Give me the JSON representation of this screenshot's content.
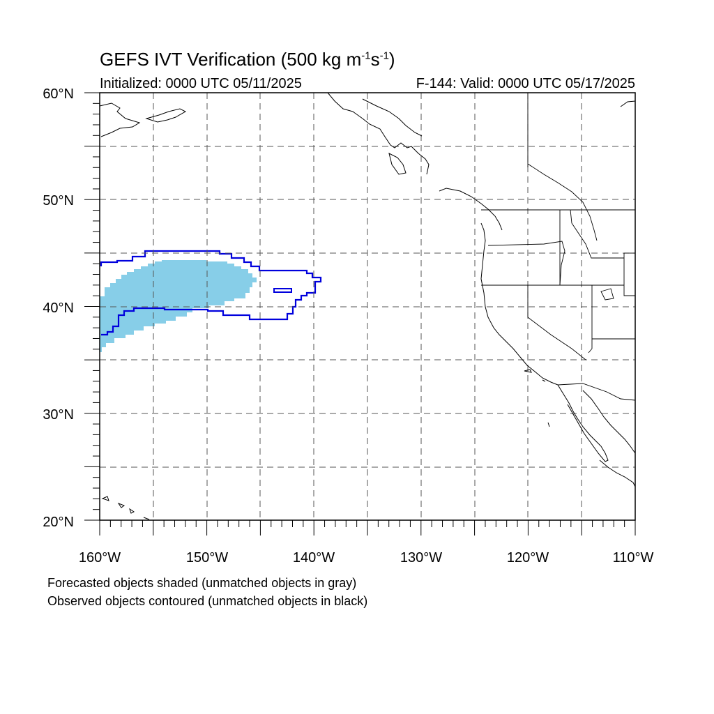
{
  "title": {
    "main": "GEFS IVT Verification (500 kg m",
    "exp1": "-1",
    "mid": "s",
    "exp2": "-1",
    "close": ")"
  },
  "initialized": "Initialized: 0000 UTC 05/11/2025",
  "valid": "F-144: Valid: 0000 UTC 05/17/2025",
  "lat_labels": [
    "60°N",
    "50°N",
    "40°N",
    "30°N",
    "20°N"
  ],
  "lon_labels": [
    "160°W",
    "150°W",
    "140°W",
    "130°W",
    "120°W",
    "110°W"
  ],
  "notes": [
    "Forecasted objects shaded (unmatched objects in gray)",
    "Observed objects contoured (unmatched objects in black)"
  ],
  "colors": {
    "forecast_fill": "#87cee8",
    "observed_contour": "#0000dd",
    "coast": "#000000"
  },
  "map_extent": {
    "lon": [
      -160,
      -110
    ],
    "lat": [
      20,
      60
    ]
  }
}
